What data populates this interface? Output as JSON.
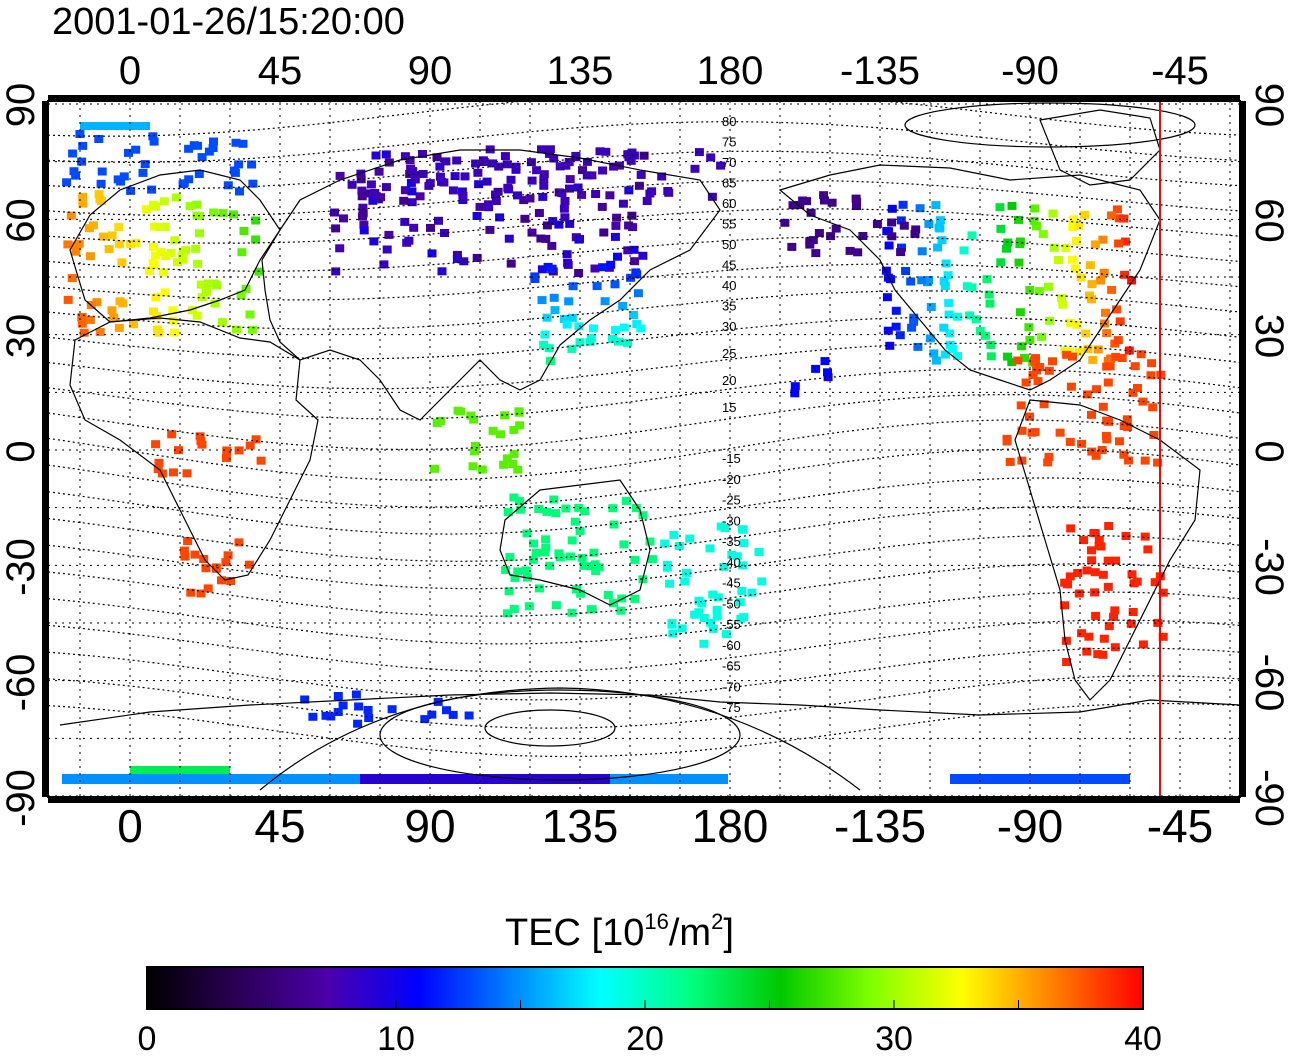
{
  "title": "2001-01-26/15:20:00",
  "map": {
    "lon_ticks": [
      "0",
      "45",
      "90",
      "135",
      "180",
      "-135",
      "-90",
      "-45"
    ],
    "lat_ticks": [
      "90",
      "60",
      "30",
      "0",
      "-30",
      "-60",
      "-90"
    ],
    "contour_labels": [
      "80",
      "75",
      "70",
      "65",
      "60",
      "55",
      "50",
      "45",
      "40",
      "35",
      "30",
      "25",
      "20",
      "15",
      "-15",
      "-20",
      "-25",
      "-30",
      "-35",
      "-40",
      "-45",
      "-50",
      "-55",
      "-60",
      "-65",
      "-70",
      "-75"
    ],
    "colors": {
      "frame": "#000000",
      "grid": "#000000",
      "marker_line": "#ff0000"
    }
  },
  "colorbar": {
    "title_main": "TEC  [10",
    "title_sup1": "16",
    "title_mid": "/m",
    "title_sup2": "2",
    "title_end": "]",
    "tick_labels": [
      "0",
      "10",
      "20",
      "30",
      "40"
    ],
    "min": 0,
    "max": 40,
    "colors": [
      "#000000",
      "#2a0055",
      "#4b00aa",
      "#0000ff",
      "#0080ff",
      "#00ffff",
      "#00ff80",
      "#00c800",
      "#80ff00",
      "#ffff00",
      "#ff8000",
      "#ff0000"
    ]
  }
}
